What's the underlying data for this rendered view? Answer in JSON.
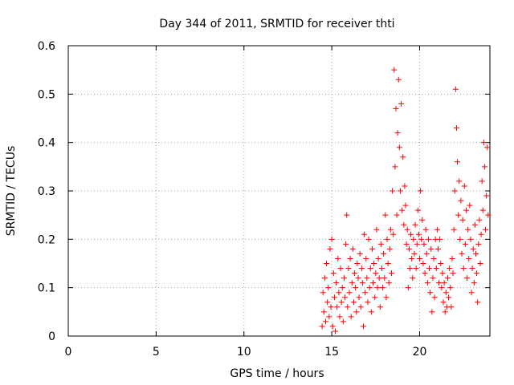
{
  "chart_data": {
    "type": "scatter",
    "title": "Day 344 of 2011, SRMTID for receiver thti",
    "xlabel": "GPS time / hours",
    "ylabel": "SRMTID / TECUs",
    "xlim": [
      0,
      24
    ],
    "ylim": [
      0,
      0.6
    ],
    "x_ticks": [
      0,
      5,
      10,
      15,
      20
    ],
    "x_tick_labels": [
      "0",
      "5",
      "10",
      "15",
      "20"
    ],
    "y_ticks": [
      0,
      0.1,
      0.2,
      0.3,
      0.4,
      0.5,
      0.6
    ],
    "y_tick_labels": [
      "0",
      "0.1",
      "0.2",
      "0.3",
      "0.4",
      "0.5",
      "0.6"
    ],
    "grid": true,
    "marker": "plus",
    "series": [
      {
        "name": "SRMTID",
        "color": "#ff0000",
        "points": [
          [
            14.45,
            0.02
          ],
          [
            14.5,
            0.09
          ],
          [
            14.55,
            0.05
          ],
          [
            14.6,
            0.12
          ],
          [
            14.65,
            0.03
          ],
          [
            14.7,
            0.15
          ],
          [
            14.75,
            0.07
          ],
          [
            14.8,
            0.1
          ],
          [
            14.85,
            0.04
          ],
          [
            14.9,
            0.18
          ],
          [
            14.95,
            0.06
          ],
          [
            15.0,
            0.2
          ],
          [
            15.05,
            0.02
          ],
          [
            15.1,
            0.13
          ],
          [
            15.15,
            0.08
          ],
          [
            15.2,
            0.01
          ],
          [
            15.25,
            0.11
          ],
          [
            15.3,
            0.06
          ],
          [
            15.35,
            0.16
          ],
          [
            15.4,
            0.09
          ],
          [
            15.45,
            0.04
          ],
          [
            15.5,
            0.14
          ],
          [
            15.55,
            0.07
          ],
          [
            15.6,
            0.1
          ],
          [
            15.65,
            0.03
          ],
          [
            15.7,
            0.12
          ],
          [
            15.75,
            0.08
          ],
          [
            15.8,
            0.19
          ],
          [
            15.85,
            0.25
          ],
          [
            15.9,
            0.06
          ],
          [
            15.95,
            0.14
          ],
          [
            16.0,
            0.09
          ],
          [
            16.05,
            0.16
          ],
          [
            16.1,
            0.04
          ],
          [
            16.15,
            0.11
          ],
          [
            16.2,
            0.18
          ],
          [
            16.25,
            0.07
          ],
          [
            16.3,
            0.13
          ],
          [
            16.35,
            0.1
          ],
          [
            16.4,
            0.05
          ],
          [
            16.45,
            0.15
          ],
          [
            16.5,
            0.12
          ],
          [
            16.55,
            0.08
          ],
          [
            16.6,
            0.17
          ],
          [
            16.65,
            0.06
          ],
          [
            16.7,
            0.14
          ],
          [
            16.75,
            0.11
          ],
          [
            16.8,
            0.02
          ],
          [
            16.85,
            0.21
          ],
          [
            16.9,
            0.09
          ],
          [
            16.95,
            0.16
          ],
          [
            17.0,
            0.12
          ],
          [
            17.05,
            0.07
          ],
          [
            17.1,
            0.2
          ],
          [
            17.15,
            0.1
          ],
          [
            17.2,
            0.14
          ],
          [
            17.25,
            0.05
          ],
          [
            17.3,
            0.18
          ],
          [
            17.35,
            0.11
          ],
          [
            17.4,
            0.15
          ],
          [
            17.45,
            0.08
          ],
          [
            17.5,
            0.13
          ],
          [
            17.55,
            0.22
          ],
          [
            17.6,
            0.1
          ],
          [
            17.65,
            0.16
          ],
          [
            17.7,
            0.12
          ],
          [
            17.75,
            0.06
          ],
          [
            17.8,
            0.19
          ],
          [
            17.85,
            0.14
          ],
          [
            17.9,
            0.1
          ],
          [
            17.95,
            0.17
          ],
          [
            18.0,
            0.12
          ],
          [
            18.05,
            0.25
          ],
          [
            18.1,
            0.08
          ],
          [
            18.15,
            0.2
          ],
          [
            18.2,
            0.15
          ],
          [
            18.25,
            0.11
          ],
          [
            18.3,
            0.18
          ],
          [
            18.35,
            0.22
          ],
          [
            18.4,
            0.13
          ],
          [
            18.45,
            0.3
          ],
          [
            18.5,
            0.21
          ],
          [
            18.55,
            0.55
          ],
          [
            18.6,
            0.35
          ],
          [
            18.65,
            0.47
          ],
          [
            18.7,
            0.25
          ],
          [
            18.75,
            0.42
          ],
          [
            18.8,
            0.53
          ],
          [
            18.85,
            0.39
          ],
          [
            18.9,
            0.3
          ],
          [
            18.95,
            0.48
          ],
          [
            19.0,
            0.26
          ],
          [
            19.05,
            0.37
          ],
          [
            19.1,
            0.23
          ],
          [
            19.15,
            0.31
          ],
          [
            19.2,
            0.27
          ],
          [
            19.25,
            0.19
          ],
          [
            19.3,
            0.22
          ],
          [
            19.35,
            0.1
          ],
          [
            19.4,
            0.18
          ],
          [
            19.45,
            0.14
          ],
          [
            19.5,
            0.21
          ],
          [
            19.55,
            0.16
          ],
          [
            19.6,
            0.12
          ],
          [
            19.65,
            0.2
          ],
          [
            19.7,
            0.17
          ],
          [
            19.75,
            0.23
          ],
          [
            19.8,
            0.14
          ],
          [
            19.85,
            0.19
          ],
          [
            19.9,
            0.26
          ],
          [
            19.95,
            0.21
          ],
          [
            20.0,
            0.16
          ],
          [
            20.05,
            0.3
          ],
          [
            20.1,
            0.2
          ],
          [
            20.15,
            0.24
          ],
          [
            20.2,
            0.15
          ],
          [
            20.25,
            0.19
          ],
          [
            20.3,
            0.13
          ],
          [
            20.35,
            0.22
          ],
          [
            20.4,
            0.17
          ],
          [
            20.45,
            0.11
          ],
          [
            20.5,
            0.2
          ],
          [
            20.55,
            0.14
          ],
          [
            20.6,
            0.09
          ],
          [
            20.65,
            0.18
          ],
          [
            20.7,
            0.05
          ],
          [
            20.75,
            0.12
          ],
          [
            20.8,
            0.16
          ],
          [
            20.85,
            0.08
          ],
          [
            20.9,
            0.2
          ],
          [
            20.95,
            0.14
          ],
          [
            21.0,
            0.22
          ],
          [
            21.05,
            0.18
          ],
          [
            21.1,
            0.11
          ],
          [
            21.15,
            0.2
          ],
          [
            21.2,
            0.15
          ],
          [
            21.25,
            0.1
          ],
          [
            21.3,
            0.13
          ],
          [
            21.35,
            0.07
          ],
          [
            21.4,
            0.11
          ],
          [
            21.45,
            0.05
          ],
          [
            21.5,
            0.09
          ],
          [
            21.55,
            0.06
          ],
          [
            21.6,
            0.12
          ],
          [
            21.65,
            0.08
          ],
          [
            21.7,
            0.14
          ],
          [
            21.75,
            0.1
          ],
          [
            21.8,
            0.06
          ],
          [
            21.85,
            0.16
          ],
          [
            21.9,
            0.13
          ],
          [
            21.95,
            0.22
          ],
          [
            22.0,
            0.3
          ],
          [
            22.05,
            0.51
          ],
          [
            22.1,
            0.43
          ],
          [
            22.15,
            0.36
          ],
          [
            22.2,
            0.25
          ],
          [
            22.25,
            0.32
          ],
          [
            22.3,
            0.2
          ],
          [
            22.35,
            0.28
          ],
          [
            22.4,
            0.17
          ],
          [
            22.45,
            0.24
          ],
          [
            22.5,
            0.14
          ],
          [
            22.55,
            0.31
          ],
          [
            22.6,
            0.19
          ],
          [
            22.65,
            0.26
          ],
          [
            22.7,
            0.12
          ],
          [
            22.75,
            0.22
          ],
          [
            22.8,
            0.16
          ],
          [
            22.85,
            0.27
          ],
          [
            22.9,
            0.2
          ],
          [
            22.95,
            0.09
          ],
          [
            23.0,
            0.14
          ],
          [
            23.05,
            0.18
          ],
          [
            23.1,
            0.11
          ],
          [
            23.15,
            0.23
          ],
          [
            23.2,
            0.17
          ],
          [
            23.25,
            0.13
          ],
          [
            23.3,
            0.07
          ],
          [
            23.35,
            0.19
          ],
          [
            23.4,
            0.24
          ],
          [
            23.45,
            0.15
          ],
          [
            23.5,
            0.21
          ],
          [
            23.55,
            0.32
          ],
          [
            23.6,
            0.26
          ],
          [
            23.65,
            0.4
          ],
          [
            23.7,
            0.35
          ],
          [
            23.75,
            0.22
          ],
          [
            23.8,
            0.29
          ],
          [
            23.85,
            0.39
          ],
          [
            23.9,
            0.25
          ]
        ]
      }
    ]
  }
}
